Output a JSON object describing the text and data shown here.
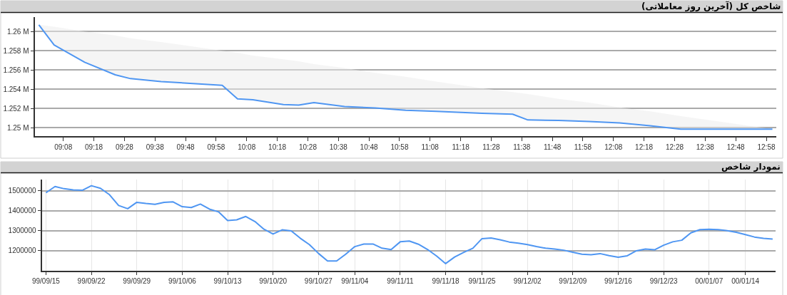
{
  "chart_data": [
    {
      "type": "line",
      "title": "شاخص کل (آخرین روز معاملاتی)",
      "x": [
        9.0,
        9.0833,
        9.25,
        9.4167,
        9.5,
        9.6667,
        10.0,
        10.0833,
        10.1667,
        10.3333,
        10.4167,
        10.5,
        10.6667,
        10.8333,
        11.0,
        11.1667,
        11.4167,
        11.5833,
        11.6667,
        11.8333,
        12.0,
        12.1667,
        12.3333,
        12.5,
        13.0
      ],
      "series": [
        {
          "color": "#4f96f2",
          "values": [
            1260700,
            1258600,
            1256800,
            1255500,
            1255100,
            1254800,
            1254400,
            1253000,
            1252900,
            1252400,
            1252350,
            1252600,
            1252200,
            1252050,
            1251800,
            1251700,
            1251500,
            1251400,
            1250800,
            1250750,
            1250650,
            1250500,
            1250200,
            1249850,
            1249850
          ],
          "lower": [
            1260700,
            1258600,
            1256800,
            1255500,
            1255100,
            1254800,
            1254400,
            1253000,
            1252900,
            1252400,
            1252350,
            1252600,
            1252200,
            1252050,
            1251800,
            1251700,
            1251500,
            1251400,
            1250800,
            1250750,
            1250650,
            1250500,
            1250200,
            1249850,
            1249850
          ],
          "upper": [
            1260700,
            1260500,
            1260000,
            1259600,
            1259300,
            1258900,
            1258000,
            1257800,
            1257500,
            1257100,
            1256900,
            1256600,
            1256200,
            1255700,
            1255300,
            1254800,
            1254100,
            1253700,
            1253500,
            1253000,
            1252600,
            1252100,
            1251700,
            1251200,
            1249850
          ]
        }
      ],
      "xlim": [
        8.98,
        13.02
      ],
      "xticks": [
        {
          "value": 9.1333,
          "label": "09:08"
        },
        {
          "value": 9.3,
          "label": "09:18"
        },
        {
          "value": 9.4667,
          "label": "09:28"
        },
        {
          "value": 9.6333,
          "label": "09:38"
        },
        {
          "value": 9.8,
          "label": "09:48"
        },
        {
          "value": 9.9667,
          "label": "09:58"
        },
        {
          "value": 10.1333,
          "label": "10:08"
        },
        {
          "value": 10.3,
          "label": "10:18"
        },
        {
          "value": 10.4667,
          "label": "10:28"
        },
        {
          "value": 10.6333,
          "label": "10:38"
        },
        {
          "value": 10.8,
          "label": "10:48"
        },
        {
          "value": 10.9667,
          "label": "10:58"
        },
        {
          "value": 11.1333,
          "label": "11:08"
        },
        {
          "value": 11.3,
          "label": "11:18"
        },
        {
          "value": 11.4667,
          "label": "11:28"
        },
        {
          "value": 11.6333,
          "label": "11:38"
        },
        {
          "value": 11.8,
          "label": "11:48"
        },
        {
          "value": 11.9667,
          "label": "11:58"
        },
        {
          "value": 12.1333,
          "label": "12:08"
        },
        {
          "value": 12.3,
          "label": "12:18"
        },
        {
          "value": 12.4667,
          "label": "12:28"
        },
        {
          "value": 12.6333,
          "label": "12:38"
        },
        {
          "value": 12.8,
          "label": "12:48"
        },
        {
          "value": 12.9667,
          "label": "12:58"
        }
      ],
      "ylim": [
        1249100,
        1261500
      ],
      "yticks": [
        {
          "value": 1250000,
          "label": "1.25 M"
        },
        {
          "value": 1252000,
          "label": "1.252 M"
        },
        {
          "value": 1254000,
          "label": "1.254 M"
        },
        {
          "value": 1256000,
          "label": "1.256 M"
        },
        {
          "value": 1258000,
          "label": "1.258 M"
        },
        {
          "value": 1260000,
          "label": "1.26 M"
        }
      ],
      "grid": "y"
    },
    {
      "type": "line",
      "title": "نمودار شاخص",
      "categories": [
        "99/09/15",
        null,
        null,
        null,
        null,
        "99/09/22",
        null,
        null,
        null,
        null,
        "99/09/29",
        null,
        null,
        null,
        null,
        "99/10/06",
        null,
        null,
        null,
        null,
        "99/10/13",
        null,
        null,
        null,
        null,
        "99/10/20",
        null,
        null,
        null,
        null,
        "99/10/27",
        null,
        null,
        null,
        "99/11/04",
        null,
        null,
        null,
        null,
        "99/11/11",
        null,
        null,
        null,
        null,
        "99/11/18",
        null,
        null,
        null,
        "99/11/25",
        null,
        null,
        null,
        null,
        "99/12/02",
        null,
        null,
        null,
        null,
        "99/12/09",
        null,
        null,
        null,
        null,
        "99/12/16",
        null,
        null,
        null,
        null,
        "99/12/23",
        null,
        null,
        null,
        null,
        "00/01/07",
        null,
        null,
        null,
        "00/01/14",
        null,
        null,
        null
      ],
      "series": [
        {
          "color": "#4f96f2",
          "values": [
            1490000,
            1521000,
            1510000,
            1504000,
            1502000,
            1525000,
            1512000,
            1480000,
            1426000,
            1410000,
            1442000,
            1436000,
            1432000,
            1442000,
            1444000,
            1420000,
            1416000,
            1433000,
            1408000,
            1394000,
            1351000,
            1354000,
            1371000,
            1346000,
            1307000,
            1283000,
            1304000,
            1299000,
            1262000,
            1230000,
            1186000,
            1148000,
            1148000,
            1182000,
            1220000,
            1233000,
            1233000,
            1212000,
            1205000,
            1244000,
            1248000,
            1232000,
            1206000,
            1173000,
            1135000,
            1168000,
            1191000,
            1212000,
            1260000,
            1263000,
            1254000,
            1243000,
            1237000,
            1230000,
            1220000,
            1212000,
            1208000,
            1202000,
            1192000,
            1182000,
            1179000,
            1185000,
            1175000,
            1167000,
            1174000,
            1199000,
            1208000,
            1204000,
            1227000,
            1244000,
            1252000,
            1289000,
            1305000,
            1307000,
            1305000,
            1300000,
            1292000,
            1280000,
            1268000,
            1261000,
            1258000
          ]
        }
      ],
      "ylim": [
        1100000,
        1557000
      ],
      "yticks": [
        1200000,
        1300000,
        1400000,
        1500000
      ],
      "grid": true
    }
  ]
}
